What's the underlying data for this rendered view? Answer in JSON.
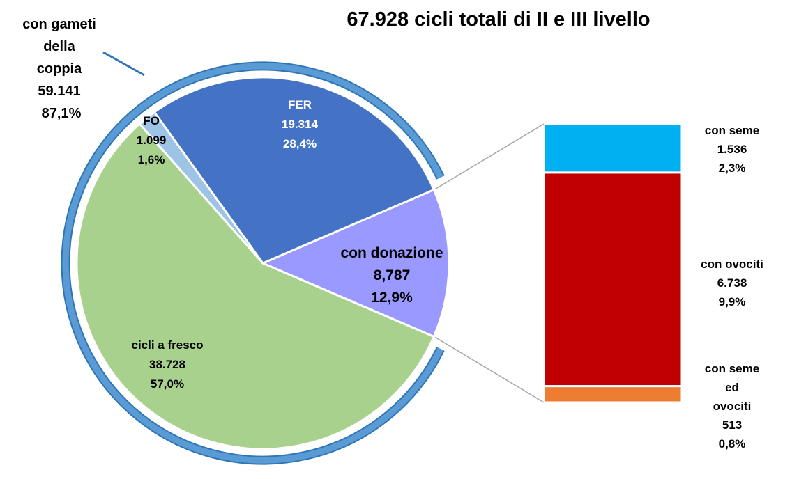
{
  "chart_data": {
    "type": "pie-of-bar",
    "title": "67.928 cicli totali di II e III livello",
    "ring": {
      "label": "con gameti\ndella\ncoppia",
      "value": 59141,
      "value_label": "59.141",
      "percent": 87.1,
      "percent_label": "87,1%",
      "color": "#5b9bd5"
    },
    "slices": {
      "categories": [
        "con donazione",
        "cicli a fresco",
        "FO",
        "FER"
      ],
      "values": [
        8787,
        38728,
        1099,
        19314
      ],
      "value_labels": [
        "8,787",
        "38.728",
        "1.099",
        "19.314"
      ],
      "percents": [
        12.9,
        57.0,
        1.6,
        28.4
      ],
      "percent_labels": [
        "12,9%",
        "57,0%",
        "1,6%",
        "28,4%"
      ],
      "colors": [
        "#9999ff",
        "#a9d18e",
        "#9dc3e6",
        "#4472c4"
      ]
    },
    "bar": {
      "categories": [
        "con seme",
        "con ovociti",
        "con seme ed\novociti"
      ],
      "values": [
        1536,
        6738,
        513
      ],
      "value_labels": [
        "1.536",
        "6.738",
        "513"
      ],
      "percents": [
        2.3,
        9.9,
        0.8
      ],
      "percent_labels": [
        "2,3%",
        "9,9%",
        "0,8%"
      ],
      "colors": [
        "#00b0f0",
        "#c00000",
        "#ed7d31"
      ]
    }
  }
}
